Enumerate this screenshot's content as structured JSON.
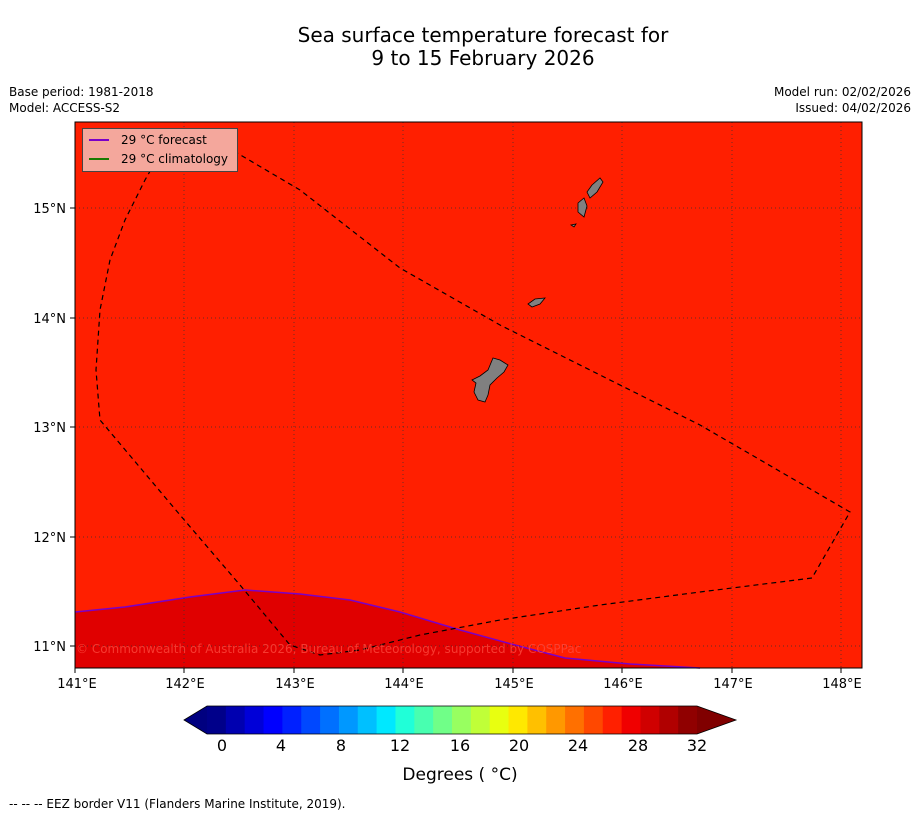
{
  "title": {
    "line1": "Sea surface temperature forecast for",
    "line2": "9 to 15 February 2026"
  },
  "meta": {
    "base_period": "Base period: 1981-2018",
    "model": "Model: ACCESS-S2",
    "model_run": "Model run: 02/02/2026",
    "issued": "Issued: 04/02/2026"
  },
  "map": {
    "lon_ticks": [
      "141°E",
      "142°E",
      "143°E",
      "144°E",
      "145°E",
      "146°E",
      "147°E",
      "148°E"
    ],
    "lat_ticks": [
      "15°N",
      "14°N",
      "13°N",
      "12°N",
      "11°N"
    ],
    "background_color": "#ff1f00",
    "warm_zone_color": "#e00000",
    "land_color": "#808080",
    "copyright": "© Commonwealth of Australia 2026, Bureau of Meteorology, supported by COSPPac"
  },
  "legend": {
    "forecast_label": "29 °C  forecast",
    "forecast_color": "#7a00c8",
    "climatology_label": "29 °C  climatology",
    "climatology_color": "#1a7a00"
  },
  "colorbar": {
    "ticks": [
      "0",
      "4",
      "8",
      "12",
      "16",
      "20",
      "24",
      "28",
      "32"
    ],
    "label": "Degrees ( °C)",
    "colors": [
      "#00008a",
      "#0000b0",
      "#0000d8",
      "#0000ff",
      "#0020ff",
      "#0048ff",
      "#0070ff",
      "#0098ff",
      "#00c0ff",
      "#00e8ff",
      "#20ffd8",
      "#48ffb0",
      "#70ff88",
      "#98ff60",
      "#c0ff38",
      "#e8ff10",
      "#ffe800",
      "#ffc000",
      "#ff9800",
      "#ff7000",
      "#ff4800",
      "#ff2000",
      "#f00000",
      "#d00000",
      "#b00000",
      "#900000"
    ],
    "low_color": "#000080",
    "high_color": "#800000"
  },
  "footnote": "--  --  -- EEZ border V11 (Flanders Marine Institute, 2019)."
}
